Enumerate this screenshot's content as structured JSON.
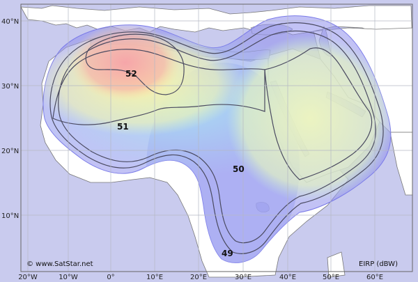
{
  "map": {
    "credit": "© www.SatStar.net",
    "unit_label": "EIRP (dBW)",
    "lat_labels": [
      "40°N",
      "30°N",
      "20°N",
      "10°N"
    ],
    "lon_labels": [
      "20°W",
      "10°W",
      "0°",
      "10°E",
      "20°E",
      "30°E",
      "40°E",
      "50°E",
      "60°E"
    ],
    "contour_labels": [
      "52",
      "51",
      "50",
      "49"
    ],
    "colors": {
      "ocean": "#c9cbee",
      "land": "#ffffff",
      "graticule": "#b4b8c4",
      "border": "#555555",
      "contour_line": "#4a4a60",
      "beam_edge": "#7a7ae8",
      "peak": "#f2a0a8",
      "warm": "#fbf0a8",
      "cool": "#9ee8f4"
    }
  }
}
